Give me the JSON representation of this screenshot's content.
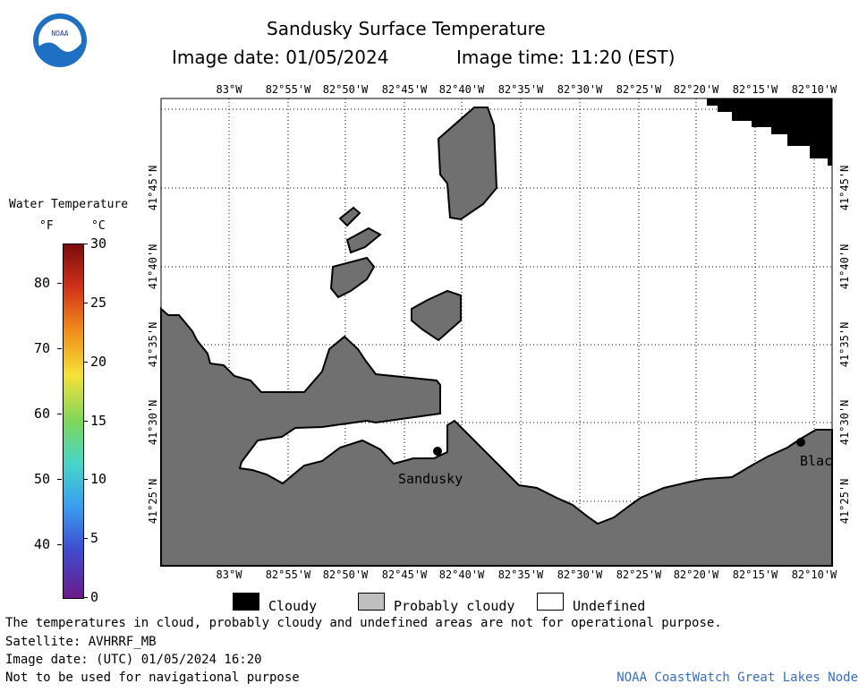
{
  "header": {
    "title": "Sandusky Surface Temperature",
    "image_date_label": "Image date: 01/05/2024",
    "image_time_label": "Image time: 11:20 (EST)"
  },
  "logo": {
    "text": "NOAA"
  },
  "colorbar": {
    "title": "Water Temperature",
    "unit_f": "°F",
    "unit_c": "°C",
    "f_ticks": [
      "80",
      "70",
      "60",
      "50",
      "40"
    ],
    "c_ticks": [
      "30",
      "25",
      "20",
      "15",
      "10",
      "5",
      "0"
    ]
  },
  "map": {
    "lon_labels": [
      "83°W",
      "82°55'W",
      "82°50'W",
      "82°45'W",
      "82°40'W",
      "82°35'W",
      "82°30'W",
      "82°25'W",
      "82°20'W",
      "82°15'W",
      "82°10'W"
    ],
    "lat_labels": [
      "41°45'N",
      "41°40'N",
      "41°35'N",
      "41°30'N",
      "41°25'N"
    ],
    "places": [
      {
        "name": "Sandusky"
      },
      {
        "name": "Blac"
      }
    ]
  },
  "legend": {
    "cloudy": "Cloudy",
    "probably_cloudy": "Probably cloudy",
    "undefined": "Undefined",
    "cloudy_color": "#000000",
    "probably_cloudy_color": "#bfbfbf",
    "undefined_color": "#ffffff",
    "land_color": "#707070"
  },
  "footer": {
    "note": "The temperatures in cloud, probably cloudy and undefined areas are not for operational purpose.",
    "satellite": "Satellite: AVHRRF_MB",
    "utc_date": "Image date: (UTC) 01/05/2024  16:20",
    "nav_warning": "Not to be used for navigational purpose",
    "credit": "NOAA CoastWatch Great Lakes Node",
    "credit_color": "#3a6fc0"
  }
}
